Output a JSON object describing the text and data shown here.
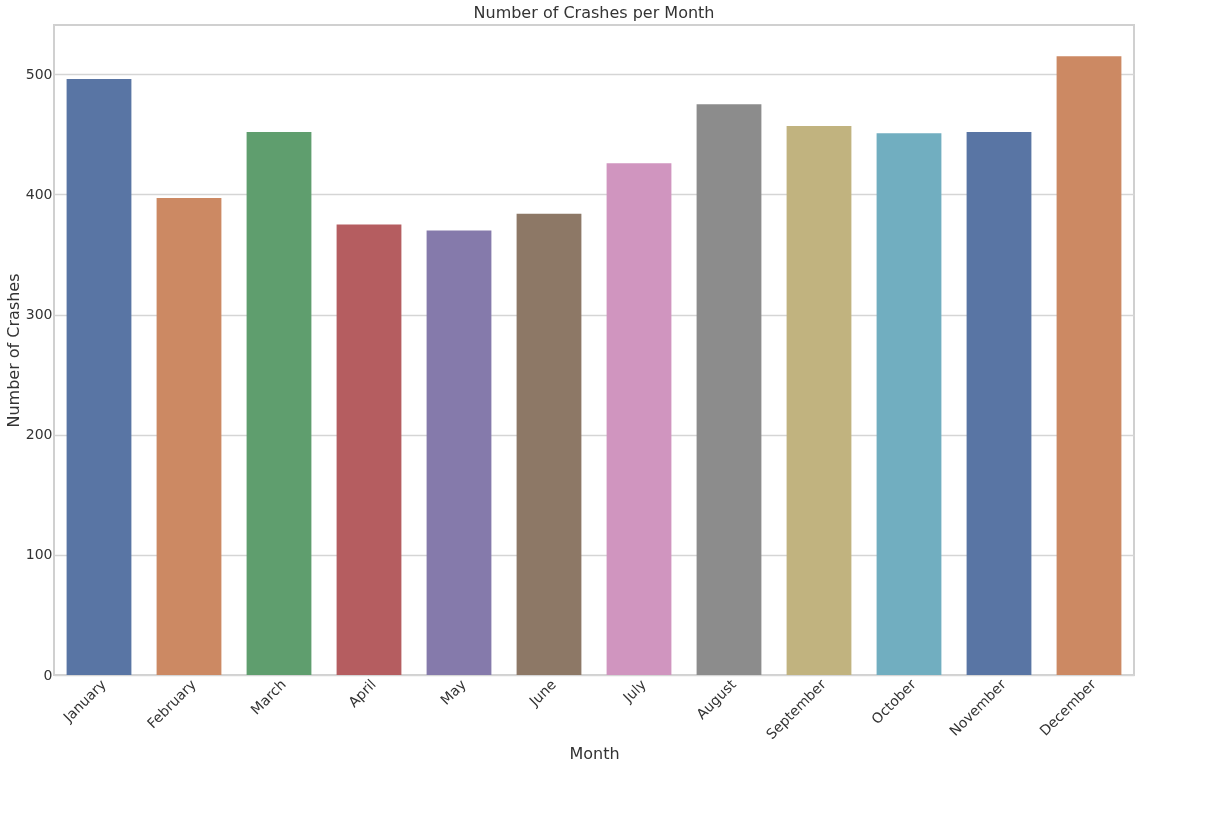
{
  "chart_data": {
    "type": "bar",
    "title": "Number of Crashes per Month",
    "xlabel": "Month",
    "ylabel": "Number of Crashes",
    "categories": [
      "January",
      "February",
      "March",
      "April",
      "May",
      "June",
      "July",
      "August",
      "September",
      "October",
      "November",
      "December"
    ],
    "values": [
      496,
      397,
      452,
      375,
      370,
      384,
      426,
      475,
      457,
      451,
      452,
      515
    ],
    "colors": [
      "#5975a4",
      "#cc8963",
      "#5f9e6e",
      "#b55d60",
      "#857aab",
      "#8d7866",
      "#d095bf",
      "#8c8c8c",
      "#c1b37f",
      "#71aec0",
      "#5975a4",
      "#cc8963"
    ],
    "ylim": [
      0,
      541
    ],
    "yticks": [
      0,
      100,
      200,
      300,
      400,
      500
    ],
    "grid": "y",
    "legend": false
  }
}
